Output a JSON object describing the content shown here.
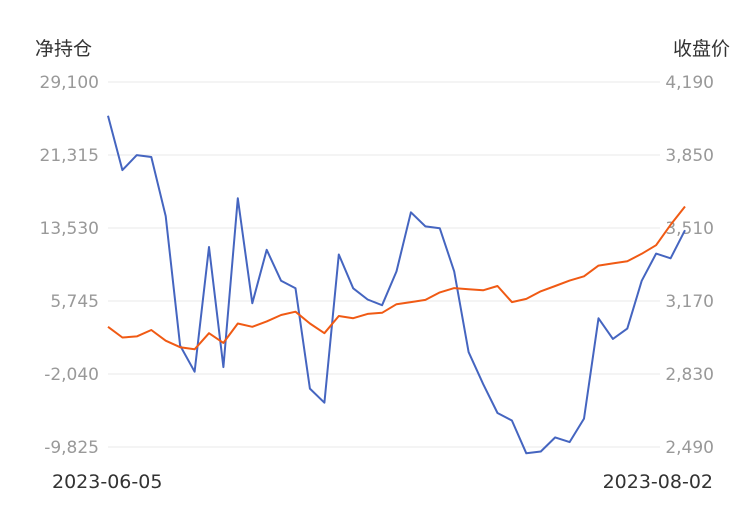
{
  "chart_data": {
    "type": "line",
    "left_axis_title": "净持仓",
    "right_axis_title": "收盘价",
    "left_ticks": [
      "29,100",
      "21,315",
      "13,530",
      "5,745",
      "-2,040",
      "-9,825"
    ],
    "right_ticks": [
      "4,190",
      "3,850",
      "3,510",
      "3,170",
      "2,830",
      "2,490"
    ],
    "left_range": [
      -9825,
      29100
    ],
    "right_range": [
      2490,
      4190
    ],
    "x_start_label": "2023-06-05",
    "x_end_label": "2023-08-02",
    "grid": true,
    "colors": {
      "net_position": "#4565c0",
      "close_price": "#f05a14"
    },
    "series": [
      {
        "axis": "left",
        "color": "#4565c0",
        "values": [
          25500,
          19700,
          21300,
          21100,
          14800,
          1000,
          -1800,
          11500,
          -1300,
          16700,
          5500,
          11200,
          7900,
          7100,
          -3600,
          -5100,
          10700,
          7100,
          5900,
          5300,
          8900,
          15200,
          13700,
          13500,
          8900,
          300,
          -3100,
          -6200,
          -7000,
          -10500,
          -10300,
          -8800,
          -9300,
          -6800,
          3900,
          1700,
          2800,
          7900,
          10800,
          10300,
          13300
        ]
      },
      {
        "axis": "right",
        "color": "#f05a14",
        "values": [
          3050,
          3000,
          3005,
          3035,
          2985,
          2955,
          2945,
          3020,
          2975,
          3065,
          3050,
          3075,
          3105,
          3120,
          3065,
          3020,
          3100,
          3090,
          3110,
          3115,
          3155,
          3165,
          3175,
          3210,
          3230,
          3225,
          3220,
          3240,
          3165,
          3180,
          3215,
          3240,
          3265,
          3285,
          3335,
          3345,
          3355,
          3390,
          3430,
          3525,
          3610
        ]
      }
    ]
  }
}
